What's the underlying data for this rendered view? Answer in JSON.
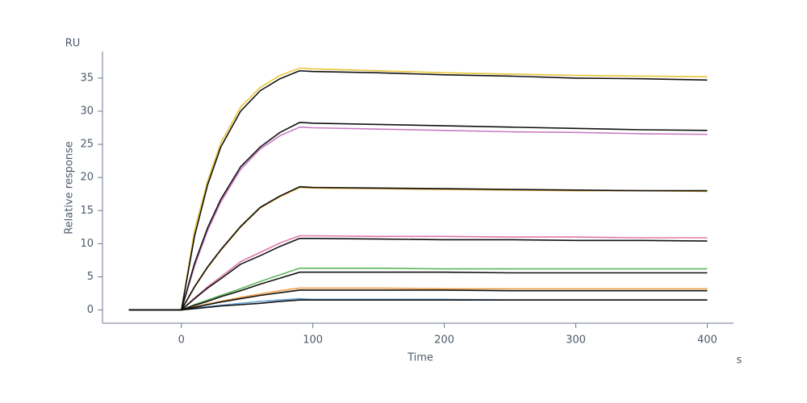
{
  "chart_data": {
    "type": "line",
    "y_unit": "RU",
    "ylabel": "Relative response",
    "xlabel": "Time",
    "x_unit": "s",
    "x": [
      -40,
      -20,
      0,
      10,
      20,
      30,
      45,
      60,
      75,
      90,
      100,
      150,
      200,
      250,
      300,
      350,
      400
    ],
    "xlim": [
      -60,
      420
    ],
    "xticks": [
      0,
      100,
      200,
      300,
      400
    ],
    "ylim": [
      -2,
      39
    ],
    "yticks": [
      0,
      5,
      10,
      15,
      20,
      25,
      30,
      35
    ],
    "series": [
      {
        "color": "#e8c63a",
        "values": [
          0,
          0,
          0,
          12,
          19.5,
          25.2,
          30.6,
          33.6,
          35.4,
          36.5,
          36.4,
          36.1,
          35.8,
          35.6,
          35.4,
          35.3,
          35.2
        ]
      },
      {
        "color": "#c97cc4",
        "values": [
          0,
          0,
          0,
          6.6,
          12.0,
          16.3,
          21.2,
          24.3,
          26.3,
          27.6,
          27.5,
          27.3,
          27.1,
          26.9,
          26.8,
          26.6,
          26.5
        ]
      },
      {
        "color": "#d4a02a",
        "values": [
          0,
          0,
          0,
          3.4,
          6.4,
          9.0,
          12.5,
          15.4,
          17.1,
          18.5,
          18.4,
          18.3,
          18.2,
          18.1,
          18.0,
          18.0,
          17.9
        ]
      },
      {
        "color": "#e07aa8",
        "values": [
          0,
          0,
          0,
          1.8,
          3.5,
          5.0,
          7.3,
          8.7,
          10.1,
          11.2,
          11.2,
          11.1,
          11.1,
          11.0,
          11.0,
          10.9,
          10.9
        ]
      },
      {
        "color": "#5cb85c",
        "values": [
          0,
          0,
          0,
          0.8,
          1.5,
          2.2,
          3.2,
          4.3,
          5.3,
          6.3,
          6.3,
          6.3,
          6.2,
          6.2,
          6.2,
          6.2,
          6.2
        ]
      },
      {
        "color": "#f0a04b",
        "values": [
          0,
          0,
          0,
          0.5,
          0.9,
          1.3,
          1.9,
          2.4,
          2.9,
          3.3,
          3.3,
          3.3,
          3.2,
          3.2,
          3.2,
          3.2,
          3.2
        ]
      },
      {
        "color": "#6fa8dc",
        "values": [
          0,
          0,
          0,
          0.3,
          0.5,
          0.7,
          1.0,
          1.3,
          1.5,
          1.7,
          1.6,
          1.6,
          1.6,
          1.5,
          1.5,
          1.5,
          1.5
        ]
      },
      {
        "color": "#111111",
        "values": [
          0,
          0,
          0,
          11.1,
          18.9,
          24.6,
          30.0,
          33.1,
          34.9,
          36.1,
          36.0,
          35.8,
          35.5,
          35.3,
          35.0,
          34.9,
          34.7
        ]
      },
      {
        "color": "#111111",
        "values": [
          0,
          0,
          0,
          7.0,
          12.4,
          16.7,
          21.6,
          24.6,
          26.8,
          28.3,
          28.2,
          28.0,
          27.8,
          27.6,
          27.4,
          27.2,
          27.1
        ]
      },
      {
        "color": "#111111",
        "values": [
          0,
          0,
          0,
          3.5,
          6.5,
          9.1,
          12.6,
          15.5,
          17.2,
          18.6,
          18.5,
          18.4,
          18.3,
          18.2,
          18.1,
          18.0,
          18.0
        ]
      },
      {
        "color": "#111111",
        "values": [
          0,
          0,
          0,
          1.7,
          3.3,
          4.7,
          6.9,
          8.2,
          9.6,
          10.8,
          10.8,
          10.7,
          10.6,
          10.6,
          10.5,
          10.5,
          10.4
        ]
      },
      {
        "color": "#111111",
        "values": [
          0,
          0,
          0,
          0.7,
          1.3,
          2.0,
          2.9,
          3.9,
          4.8,
          5.7,
          5.7,
          5.7,
          5.7,
          5.6,
          5.6,
          5.6,
          5.6
        ]
      },
      {
        "color": "#111111",
        "values": [
          0,
          0,
          0,
          0.4,
          0.8,
          1.2,
          1.7,
          2.2,
          2.6,
          3.0,
          3.0,
          3.0,
          3.0,
          2.9,
          2.9,
          2.9,
          2.9
        ]
      },
      {
        "color": "#111111",
        "values": [
          0,
          0,
          0,
          0.2,
          0.4,
          0.6,
          0.8,
          1.0,
          1.3,
          1.5,
          1.5,
          1.5,
          1.5,
          1.5,
          1.5,
          1.5,
          1.5
        ]
      }
    ]
  }
}
